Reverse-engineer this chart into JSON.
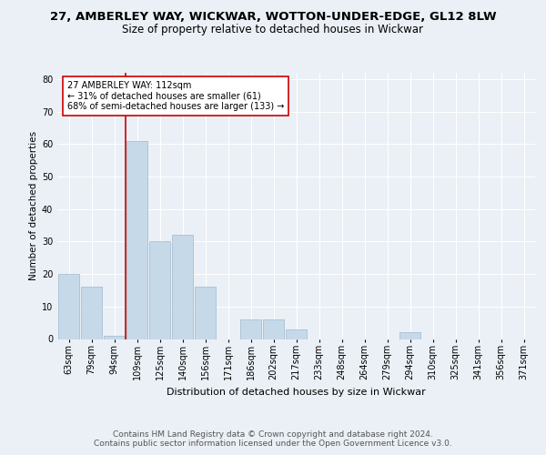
{
  "title1": "27, AMBERLEY WAY, WICKWAR, WOTTON-UNDER-EDGE, GL12 8LW",
  "title2": "Size of property relative to detached houses in Wickwar",
  "xlabel": "Distribution of detached houses by size in Wickwar",
  "ylabel": "Number of detached properties",
  "categories": [
    "63sqm",
    "79sqm",
    "94sqm",
    "109sqm",
    "125sqm",
    "140sqm",
    "156sqm",
    "171sqm",
    "186sqm",
    "202sqm",
    "217sqm",
    "233sqm",
    "248sqm",
    "264sqm",
    "279sqm",
    "294sqm",
    "310sqm",
    "325sqm",
    "341sqm",
    "356sqm",
    "371sqm"
  ],
  "values": [
    20,
    16,
    1,
    61,
    30,
    32,
    16,
    0,
    6,
    6,
    3,
    0,
    0,
    0,
    0,
    2,
    0,
    0,
    0,
    0,
    0
  ],
  "bar_color": "#c5d9e8",
  "bar_edge_color": "#a0b8cc",
  "vline_color": "#cc0000",
  "vline_x_index": 3,
  "annotation_text": "27 AMBERLEY WAY: 112sqm\n← 31% of detached houses are smaller (61)\n68% of semi-detached houses are larger (133) →",
  "annotation_box_color": "#ffffff",
  "annotation_box_edge": "#cc0000",
  "ylim": [
    0,
    82
  ],
  "yticks": [
    0,
    10,
    20,
    30,
    40,
    50,
    60,
    70,
    80
  ],
  "background_color": "#eaf0f6",
  "plot_bg_color": "#eaf0f6",
  "footer": "Contains HM Land Registry data © Crown copyright and database right 2024.\nContains public sector information licensed under the Open Government Licence v3.0.",
  "title1_fontsize": 9.5,
  "title2_fontsize": 8.5,
  "xlabel_fontsize": 8,
  "ylabel_fontsize": 7.5,
  "footer_fontsize": 6.5,
  "tick_fontsize": 7
}
